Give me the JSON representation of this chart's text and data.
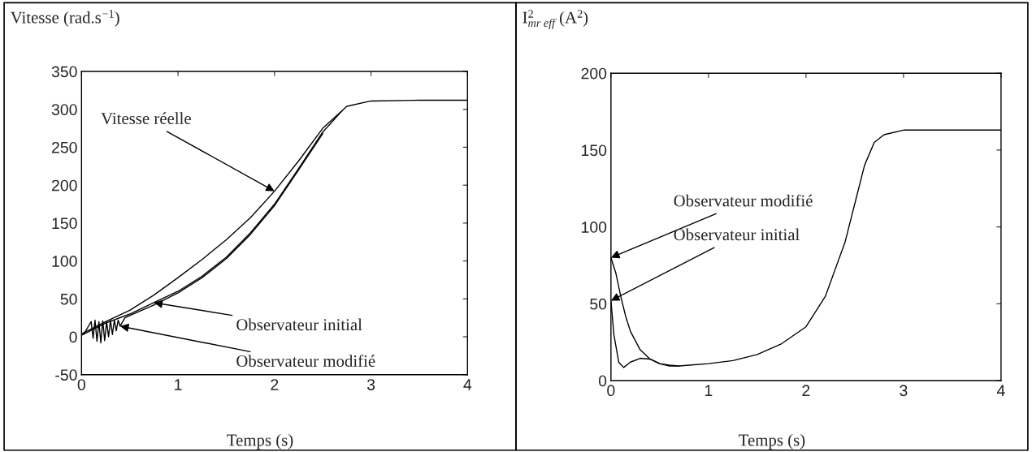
{
  "chart_data": [
    {
      "type": "line",
      "ylabel": "Vitesse (rad.s$^{−1}$)",
      "xlabel": "Temps (s)",
      "xlim": [
        0,
        4
      ],
      "xticks": [
        0,
        1,
        2,
        3,
        4
      ],
      "ylim": [
        -50,
        350
      ],
      "yticks": [
        -50,
        0,
        50,
        100,
        150,
        200,
        250,
        300,
        350
      ],
      "grid": false,
      "legend": false,
      "series": [
        {
          "color": "#000000",
          "x": [
            0,
            0.25,
            0.5,
            0.75,
            1,
            1.25,
            1.5,
            1.75,
            2,
            2.25,
            2.5,
            2.75,
            3,
            3.5,
            4
          ],
          "values": [
            4,
            20,
            35,
            55,
            78,
            102,
            128,
            157,
            192,
            232,
            275,
            304,
            311,
            312,
            312
          ]
        },
        {
          "color": "#000000",
          "x": [
            0,
            0.25,
            0.5,
            0.75,
            1,
            1.25,
            1.5,
            1.75,
            2,
            2.25,
            2.5,
            2.7
          ],
          "values": [
            2,
            18,
            30,
            45,
            60,
            80,
            105,
            137,
            175,
            222,
            270,
            298
          ]
        },
        {
          "color": "#000000",
          "x": [
            0.02,
            0.1,
            0.12,
            0.14,
            0.16,
            0.18,
            0.2,
            0.22,
            0.24,
            0.26,
            0.28,
            0.3,
            0.32,
            0.34,
            0.36,
            0.38,
            0.4,
            0.45,
            0.5,
            0.75,
            1,
            1.25,
            1.5,
            1.75,
            2,
            2.25,
            2.5
          ],
          "values": [
            3,
            20,
            -2,
            22,
            -6,
            20,
            -8,
            21,
            -5,
            20,
            0,
            22,
            3,
            22,
            8,
            22,
            14,
            25,
            28,
            42,
            58,
            78,
            103,
            135,
            173,
            220,
            268
          ]
        }
      ],
      "annotations": [
        {
          "text": "Vitesse réelle",
          "x": 2,
          "y": 192
        },
        {
          "text": "Observateur initial",
          "x": 0.75,
          "y": 45
        },
        {
          "text": "Observateur modifié",
          "x": 0.4,
          "y": 14
        }
      ]
    },
    {
      "type": "line",
      "ylabel": "I$^{2}$$_{mr eff}$ (A$^{2}$)",
      "xlabel": "Temps (s)",
      "xlim": [
        0,
        4
      ],
      "xticks": [
        0,
        1,
        2,
        3,
        4
      ],
      "ylim": [
        0,
        200
      ],
      "yticks": [
        0,
        50,
        100,
        150,
        200
      ],
      "grid": false,
      "legend": false,
      "series": [
        {
          "color": "#000000",
          "x": [
            0,
            0.05,
            0.1,
            0.15,
            0.2,
            0.3,
            0.4,
            0.5,
            0.6,
            0.7,
            0.8,
            1,
            1.25,
            1.5,
            1.75,
            2,
            2.2,
            2.4,
            2.5,
            2.6,
            2.7,
            2.8,
            3,
            3.5,
            4
          ],
          "values": [
            80,
            70,
            55,
            42,
            32,
            20,
            14,
            11,
            10,
            9.5,
            10,
            11,
            13,
            17,
            24,
            35,
            55,
            90,
            115,
            140,
            155,
            160,
            163,
            163,
            163
          ]
        },
        {
          "color": "#000000",
          "x": [
            0,
            0.03,
            0.08,
            0.13,
            0.2,
            0.3,
            0.4,
            0.5,
            0.6,
            0.7
          ],
          "values": [
            52,
            30,
            12,
            8.5,
            12,
            14.5,
            14,
            11,
            9.5,
            9.5
          ]
        }
      ],
      "annotations": [
        {
          "text": "Observateur modifié",
          "x": 0,
          "y": 80
        },
        {
          "text": "Observateur initial",
          "x": 0,
          "y": 52
        }
      ]
    }
  ]
}
